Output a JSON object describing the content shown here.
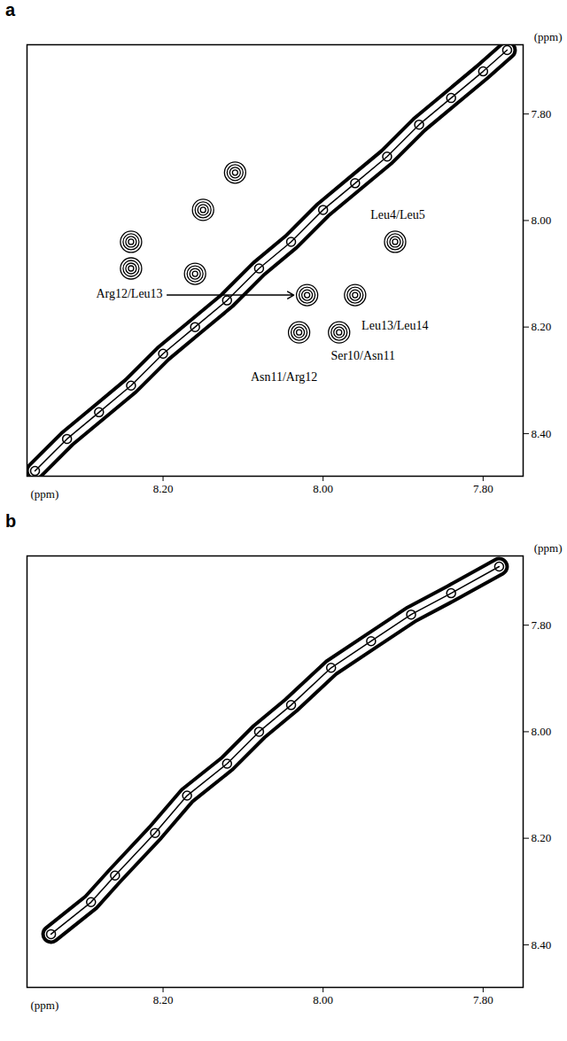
{
  "chart_data": [
    {
      "type": "scatter",
      "title": "a",
      "x_label": "(ppm)",
      "y_label": "(ppm)",
      "xlim": [
        8.37,
        7.75
      ],
      "ylim": [
        7.67,
        8.48
      ],
      "xticks": [
        {
          "value": 8.2,
          "label": "8.20"
        },
        {
          "value": 8.0,
          "label": "8.00"
        },
        {
          "value": 7.8,
          "label": "7.80"
        }
      ],
      "yticks": [
        {
          "value": 7.8,
          "label": "7.80"
        },
        {
          "value": 8.0,
          "label": "8.00"
        },
        {
          "value": 8.2,
          "label": "8.20"
        },
        {
          "value": 8.4,
          "label": "8.40"
        }
      ],
      "diagonal": {
        "x": [
          8.36,
          8.32,
          8.28,
          8.24,
          8.2,
          8.16,
          8.12,
          8.08,
          8.04,
          8.0,
          7.96,
          7.92,
          7.88,
          7.84,
          7.8,
          7.77
        ],
        "y": [
          8.47,
          8.41,
          8.36,
          8.31,
          8.25,
          8.2,
          8.15,
          8.09,
          8.04,
          7.98,
          7.93,
          7.88,
          7.82,
          7.77,
          7.72,
          7.68
        ]
      },
      "cross_peaks": {
        "x": [
          7.91,
          7.96,
          8.02,
          8.03,
          7.98,
          8.11,
          8.15,
          8.24,
          8.24,
          8.16
        ],
        "y": [
          8.04,
          8.14,
          8.14,
          8.21,
          8.21,
          7.91,
          7.98,
          8.04,
          8.09,
          8.1
        ],
        "labels": [
          "Leu4/Leu5",
          "Leu13/Leu14",
          "Arg12/Leu13",
          "Asn11/Arg12",
          "Ser10/Asn11",
          null,
          null,
          null,
          null,
          null
        ]
      }
    },
    {
      "type": "scatter",
      "title": "b",
      "x_label": "(ppm)",
      "y_label": "(ppm)",
      "xlim": [
        8.37,
        7.75
      ],
      "ylim": [
        7.67,
        8.48
      ],
      "xticks": [
        {
          "value": 8.2,
          "label": "8.20"
        },
        {
          "value": 8.0,
          "label": "8.00"
        },
        {
          "value": 7.8,
          "label": "7.80"
        }
      ],
      "yticks": [
        {
          "value": 7.8,
          "label": "7.80"
        },
        {
          "value": 8.0,
          "label": "8.00"
        },
        {
          "value": 8.2,
          "label": "8.20"
        },
        {
          "value": 8.4,
          "label": "8.40"
        }
      ],
      "diagonal": {
        "x": [
          8.34,
          8.29,
          8.26,
          8.21,
          8.17,
          8.12,
          8.08,
          8.04,
          7.99,
          7.94,
          7.89,
          7.84,
          7.78
        ],
        "y": [
          8.38,
          8.32,
          8.27,
          8.19,
          8.12,
          8.06,
          8.0,
          7.95,
          7.88,
          7.83,
          7.78,
          7.74,
          7.69
        ]
      }
    }
  ]
}
